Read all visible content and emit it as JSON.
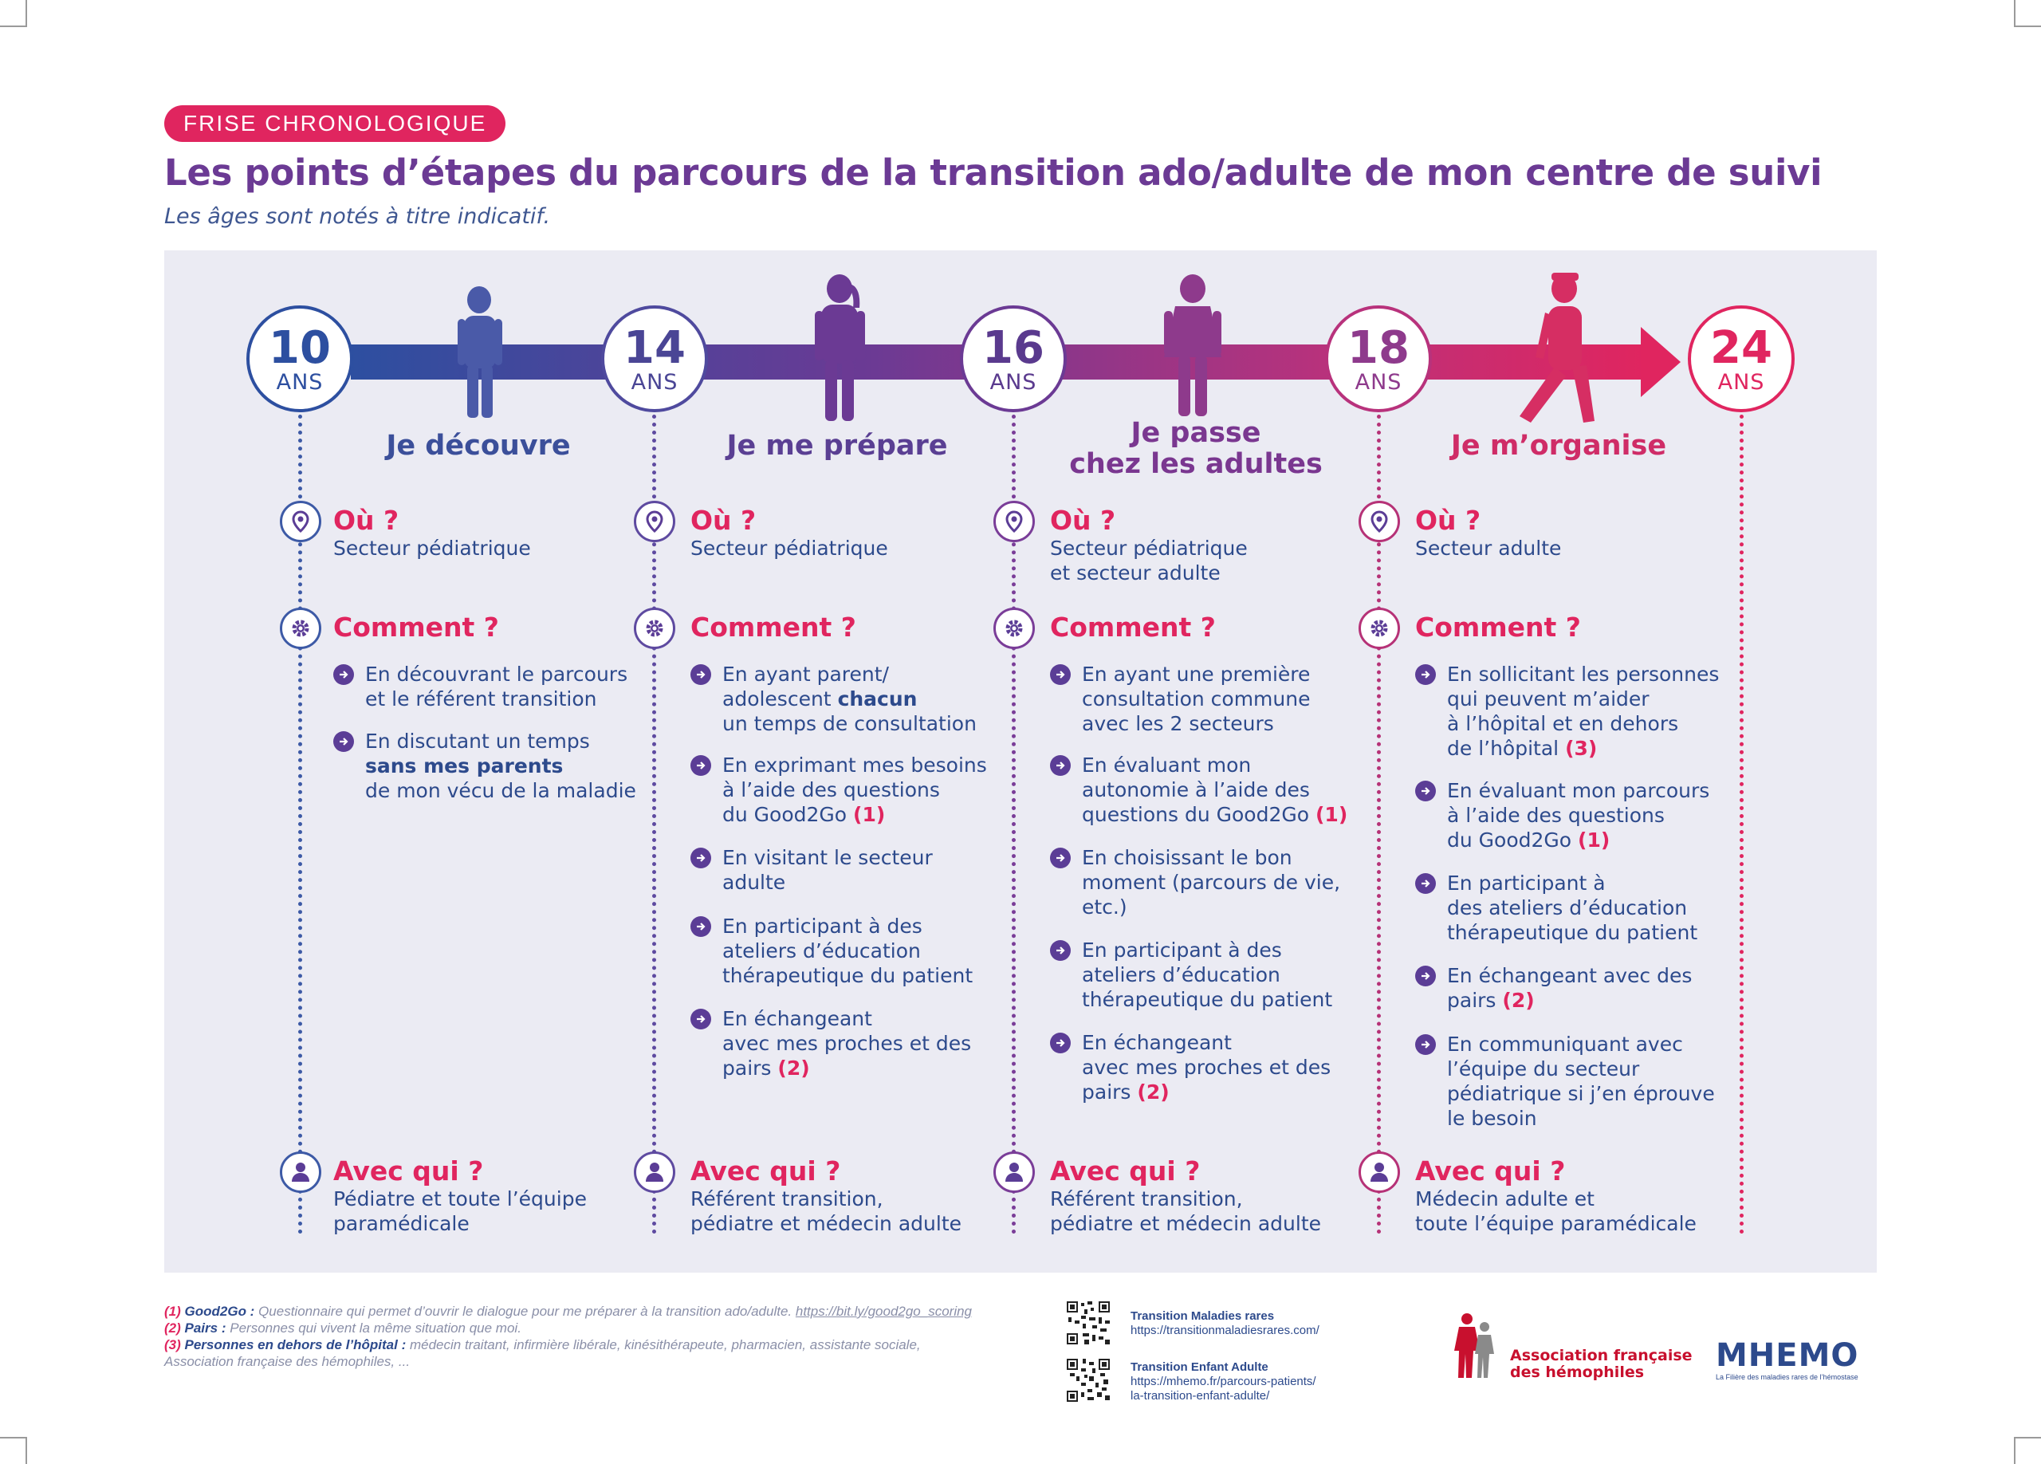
{
  "header": {
    "badge": "FRISE CHRONOLOGIQUE",
    "title": "Les points d’étapes du parcours de la transition ado/adulte de mon centre de suivi",
    "subtitle": "Les âges sont notés à titre indicatif."
  },
  "colors": {
    "blue": "#2d4a8c",
    "violet": "#6b3a94",
    "pink": "#e0255f",
    "panel": "#ebebf3"
  },
  "ages": [
    {
      "num": "10",
      "unit": "ANS"
    },
    {
      "num": "14",
      "unit": "ANS"
    },
    {
      "num": "16",
      "unit": "ANS"
    },
    {
      "num": "18",
      "unit": "ANS"
    },
    {
      "num": "24",
      "unit": "ANS"
    }
  ],
  "stages": [
    {
      "name": "Je découvre",
      "ou_label": "Où ?",
      "ou": "Secteur pédiatrique",
      "comment_label": "Comment ?",
      "bullets": [
        {
          "text": "En découvrant le parcours\net le référent transition"
        },
        {
          "pre": "En discutant un temps\n",
          "bold": "sans mes parents",
          "post": "\nde mon vécu de la maladie"
        }
      ],
      "avec_label": "Avec qui ?",
      "avec": "Pédiatre et toute l’équipe\nparamédicale"
    },
    {
      "name": "Je me prépare",
      "ou_label": "Où ?",
      "ou": "Secteur pédiatrique",
      "comment_label": "Comment ?",
      "bullets": [
        {
          "pre": "En ayant parent/\nadolescent ",
          "bold": "chacun",
          "post": "\nun temps de consultation"
        },
        {
          "text": "En exprimant mes besoins\nà l’aide des questions\ndu Good2Go",
          "ref": "(1)"
        },
        {
          "text": "En visitant le secteur\nadulte"
        },
        {
          "text": "En participant à des\nateliers d’éducation\nthérapeutique du patient"
        },
        {
          "text": "En échangeant\navec mes proches et des\npairs",
          "ref": "(2)"
        }
      ],
      "avec_label": "Avec qui ?",
      "avec": "Référent transition,\npédiatre et médecin adulte"
    },
    {
      "name": "Je passe\nchez les adultes",
      "ou_label": "Où ?",
      "ou": "Secteur pédiatrique\net secteur adulte",
      "comment_label": "Comment ?",
      "bullets": [
        {
          "text": "En ayant une première\nconsultation commune\navec les 2 secteurs"
        },
        {
          "text": "En évaluant mon\nautonomie à l’aide des\nquestions du Good2Go",
          "ref": "(1)"
        },
        {
          "text": "En choisissant le bon\nmoment (parcours de vie,\netc.)"
        },
        {
          "text": "En participant à des\nateliers d’éducation\nthérapeutique du patient"
        },
        {
          "text": "En échangeant\navec mes proches et des\npairs",
          "ref": "(2)"
        }
      ],
      "avec_label": "Avec qui ?",
      "avec": "Référent transition,\npédiatre et médecin adulte"
    },
    {
      "name": "Je m’organise",
      "ou_label": "Où ?",
      "ou": "Secteur adulte",
      "comment_label": "Comment ?",
      "bullets": [
        {
          "text": "En sollicitant les personnes\nqui peuvent m’aider\nà l’hôpital et en dehors\nde l’hôpital",
          "ref": "(3)"
        },
        {
          "text": "En évaluant mon parcours\nà l’aide des questions\ndu Good2Go",
          "ref": "(1)"
        },
        {
          "text": "En participant à\ndes ateliers d’éducation\nthérapeutique du patient"
        },
        {
          "text": "En échangeant avec des\npairs",
          "ref": "(2)"
        },
        {
          "text": "En communiquant avec\nl’équipe du secteur\npédiatrique si j’en éprouve\nle besoin"
        }
      ],
      "avec_label": "Avec qui ?",
      "avec": "Médecin adulte et\ntoute l’équipe paramédicale"
    }
  ],
  "footnotes": [
    {
      "num": "(1)",
      "label": "Good2Go :",
      "text": "Questionnaire qui permet d’ouvrir le dialogue pour me préparer à la transition ado/adulte.",
      "link": "https://bit.ly/good2go_scoring"
    },
    {
      "num": "(2)",
      "label": "Pairs :",
      "text": "Personnes qui vivent la même situation que moi."
    },
    {
      "num": "(3)",
      "label": "Personnes en dehors de l’hôpital :",
      "text": "médecin traitant, infirmière libérale, kinésithérapeute, pharmacien, assistante sociale,"
    },
    {
      "text": "Association française des hémophiles, ..."
    }
  ],
  "qr_links": [
    {
      "title": "Transition Maladies rares",
      "url": "https://transitionmaladiesrares.com/"
    },
    {
      "title": "Transition Enfant Adulte",
      "url": "https://mhemo.fr/parcours-patients/\nla-transition-enfant-adulte/"
    }
  ],
  "logos": {
    "afh": "Association française\ndes hémophiles",
    "mhemo": "MHEMO",
    "mhemo_tag": "La Filière des maladies rares de l’hémostase"
  }
}
